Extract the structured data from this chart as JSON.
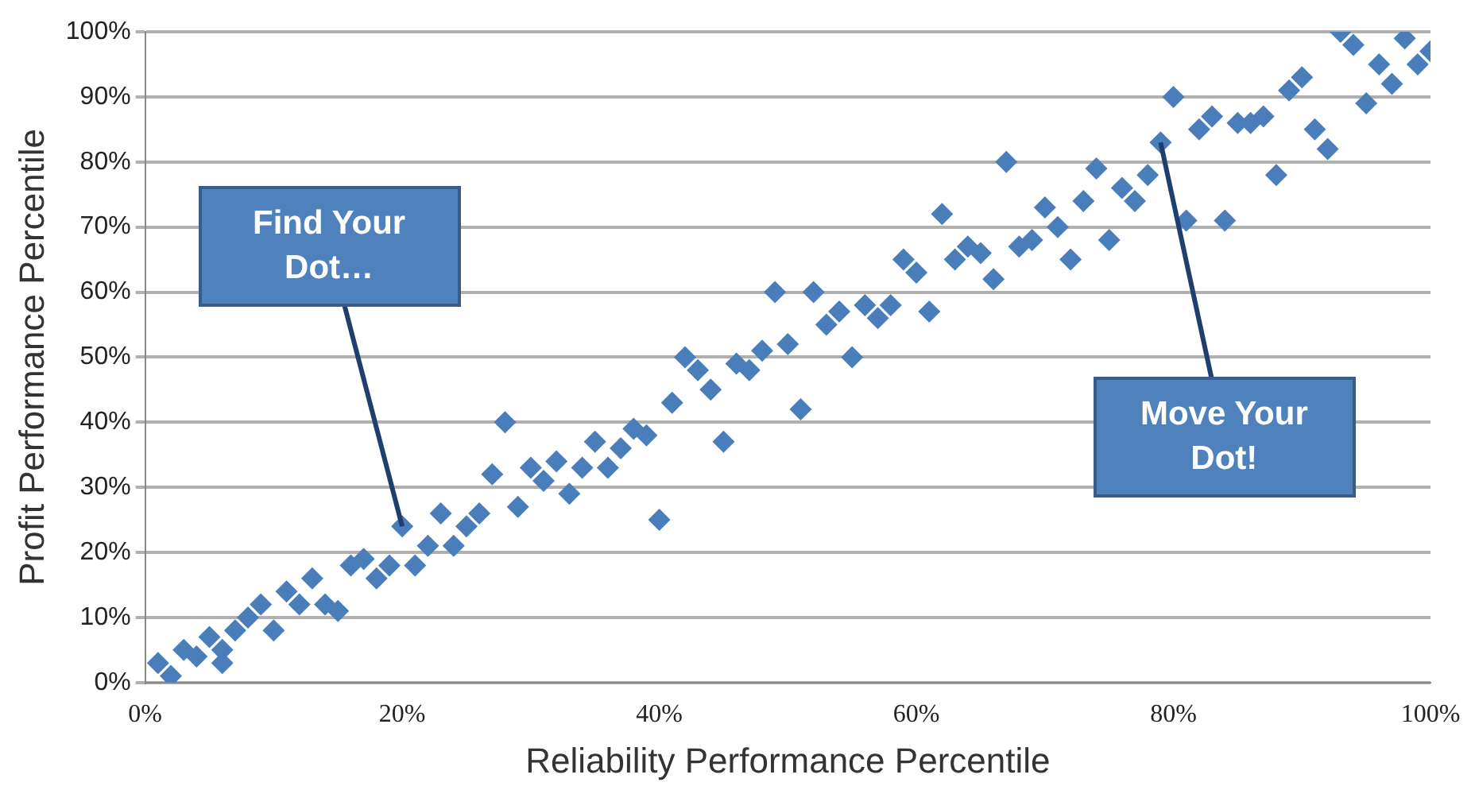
{
  "chart_data": {
    "type": "scatter",
    "xlabel": "Reliability Performance Percentile",
    "ylabel": "Profit Performance Percentile",
    "x": [
      1,
      2,
      3,
      4,
      5,
      6,
      6,
      7,
      8,
      9,
      10,
      11,
      12,
      13,
      14,
      15,
      16,
      17,
      18,
      19,
      20,
      21,
      22,
      23,
      24,
      25,
      26,
      27,
      28,
      29,
      30,
      31,
      32,
      33,
      34,
      35,
      36,
      37,
      38,
      39,
      40,
      41,
      42,
      43,
      44,
      45,
      46,
      47,
      48,
      49,
      50,
      51,
      52,
      53,
      54,
      55,
      56,
      57,
      58,
      59,
      60,
      61,
      62,
      63,
      64,
      65,
      66,
      67,
      68,
      69,
      70,
      71,
      72,
      73,
      74,
      75,
      76,
      77,
      78,
      79,
      80,
      81,
      82,
      83,
      84,
      85,
      86,
      87,
      88,
      89,
      90,
      91,
      92,
      93,
      94,
      95,
      96,
      97,
      98,
      99,
      100
    ],
    "series": [
      {
        "color": "#4a7ebb",
        "values": [
          3,
          1,
          5,
          4,
          7,
          3,
          5,
          8,
          10,
          12,
          8,
          14,
          12,
          16,
          12,
          11,
          18,
          19,
          16,
          18,
          24,
          18,
          21,
          26,
          21,
          24,
          26,
          32,
          40,
          27,
          33,
          31,
          34,
          29,
          33,
          37,
          33,
          36,
          39,
          38,
          25,
          43,
          50,
          48,
          45,
          37,
          49,
          48,
          51,
          60,
          52,
          42,
          60,
          55,
          57,
          50,
          58,
          56,
          58,
          65,
          63,
          57,
          72,
          65,
          67,
          66,
          62,
          80,
          67,
          68,
          73,
          70,
          65,
          74,
          79,
          68,
          76,
          74,
          78,
          83,
          90,
          71,
          85,
          87,
          71,
          86,
          86,
          87,
          78,
          91,
          93,
          85,
          82,
          100,
          98,
          89,
          95,
          92,
          99,
          95,
          97
        ]
      }
    ],
    "xlim": [
      0,
      100
    ],
    "ylim": [
      0,
      100
    ],
    "xticks": [
      {
        "value": 0,
        "label": "0%"
      },
      {
        "value": 20,
        "label": "20%"
      },
      {
        "value": 40,
        "label": "40%"
      },
      {
        "value": 60,
        "label": "60%"
      },
      {
        "value": 80,
        "label": "80%"
      },
      {
        "value": 100,
        "label": "100%"
      }
    ],
    "yticks": [
      {
        "value": 0,
        "label": "0%"
      },
      {
        "value": 10,
        "label": "10%"
      },
      {
        "value": 20,
        "label": "20%"
      },
      {
        "value": 30,
        "label": "30%"
      },
      {
        "value": 40,
        "label": "40%"
      },
      {
        "value": 50,
        "label": "50%"
      },
      {
        "value": 60,
        "label": "60%"
      },
      {
        "value": 70,
        "label": "70%"
      },
      {
        "value": 80,
        "label": "80%"
      },
      {
        "value": 90,
        "label": "90%"
      },
      {
        "value": 100,
        "label": "100%"
      }
    ],
    "grid": "y",
    "marker": "diamond",
    "legend": false,
    "annotations": [
      {
        "text": "Find Your Dot…",
        "x": 20,
        "y": 24
      },
      {
        "text": "Move Your Dot!",
        "x": 79,
        "y": 83
      }
    ]
  }
}
